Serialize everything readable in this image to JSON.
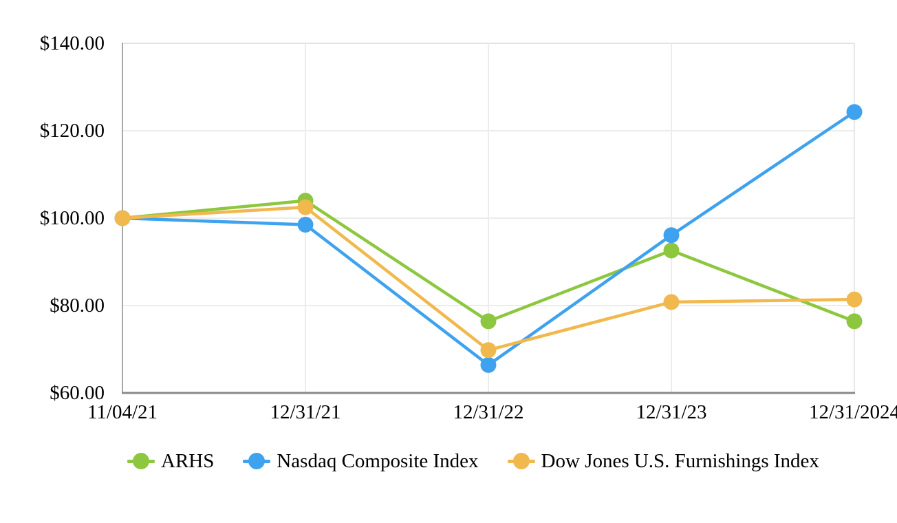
{
  "chart_data": {
    "type": "line",
    "title": "",
    "xlabel": "",
    "ylabel": "",
    "x_labels": [
      "11/04/21",
      "12/31/21",
      "12/31/22",
      "12/31/23",
      "12/31/2024"
    ],
    "y_tick_labels": [
      "$140.00",
      "$120.00",
      "$100.00",
      "$80.00",
      "$60.00"
    ],
    "y_tick_values": [
      140,
      120,
      100,
      80,
      60
    ],
    "ylim": [
      60,
      140
    ],
    "grid": true,
    "legend_position": "bottom",
    "series": [
      {
        "name": "ARHS",
        "color": "#8DC73F",
        "values": [
          100.0,
          104.0,
          76.4,
          92.6,
          76.4
        ]
      },
      {
        "name": "Nasdaq Composite Index",
        "color": "#3EA2EF",
        "values": [
          100.0,
          98.5,
          66.4,
          96.1,
          124.3
        ]
      },
      {
        "name": "Dow Jones U.S. Furnishings Index",
        "color": "#F1B84E",
        "values": [
          100.0,
          102.5,
          69.8,
          80.8,
          81.4
        ]
      }
    ]
  }
}
